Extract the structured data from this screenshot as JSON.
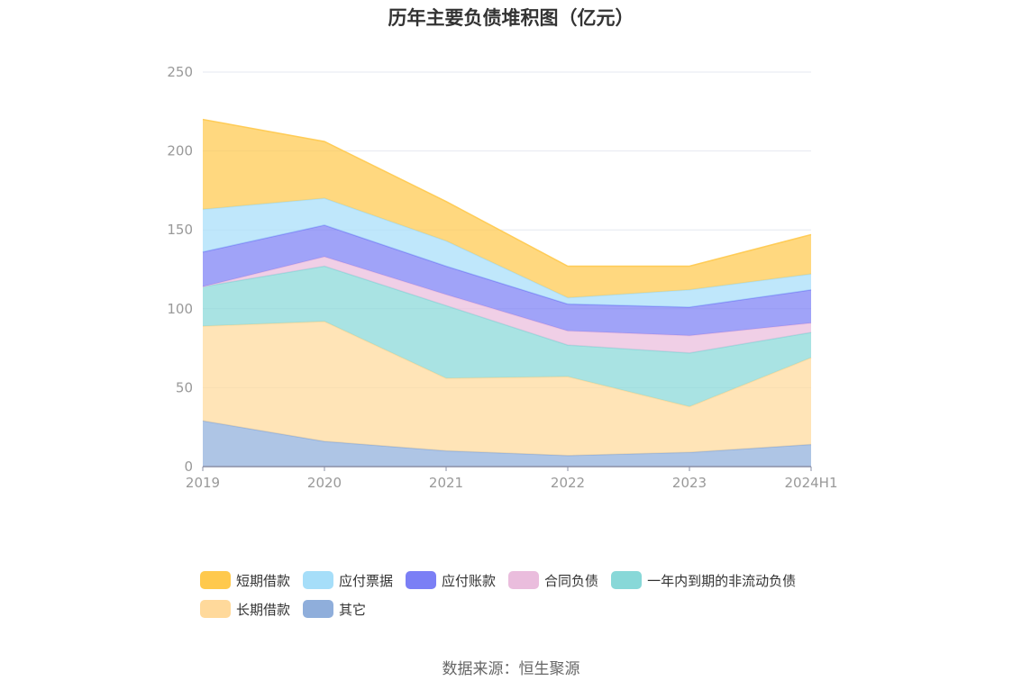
{
  "chart_data": {
    "type": "area",
    "stacked": true,
    "title": "历年主要负债堆积图（亿元）",
    "categories": [
      "2019",
      "2020",
      "2021",
      "2022",
      "2023",
      "2024H1"
    ],
    "ylim": [
      0,
      250
    ],
    "yticks": [
      0,
      50,
      100,
      150,
      200,
      250
    ],
    "grid": true,
    "legend_position": "bottom",
    "series": [
      {
        "name": "其它",
        "color": "#8faedb",
        "values": [
          29,
          16,
          10,
          7,
          9,
          14
        ]
      },
      {
        "name": "长期借款",
        "color": "#ffd99b",
        "values": [
          60,
          76,
          46,
          50,
          29,
          55
        ]
      },
      {
        "name": "一年内到期的非流动负债",
        "color": "#88d8d8",
        "values": [
          25,
          35,
          46,
          20,
          34,
          16
        ]
      },
      {
        "name": "合同负债",
        "color": "#eabddd",
        "values": [
          0,
          6,
          7,
          9,
          11,
          6
        ]
      },
      {
        "name": "应付账款",
        "color": "#7b7ff5",
        "values": [
          22,
          20,
          18,
          17,
          18,
          21
        ]
      },
      {
        "name": "应付票据",
        "color": "#a6def9",
        "values": [
          27,
          17,
          16,
          4,
          11,
          10
        ]
      },
      {
        "name": "短期借款",
        "color": "#ffc94d",
        "values": [
          57,
          36,
          25,
          20,
          15,
          25
        ]
      }
    ],
    "legend_order": [
      "短期借款",
      "应付票据",
      "应付账款",
      "合同负债",
      "一年内到期的非流动负债",
      "长期借款",
      "其它"
    ]
  },
  "source": "数据来源：恒生聚源"
}
